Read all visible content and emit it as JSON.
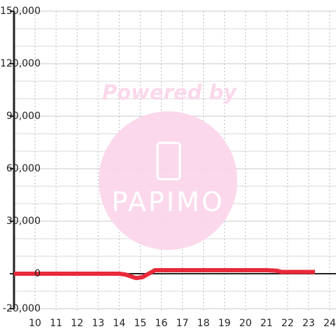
{
  "chart_data": {
    "type": "line",
    "watermark": {
      "line1": "Powered by",
      "line2": "PAPIMO"
    },
    "x": [
      9,
      10,
      11,
      12,
      13,
      14,
      14.3,
      14.8,
      15.1,
      15.4,
      15.7,
      16,
      17,
      18,
      19,
      20,
      21,
      21.5,
      21.7,
      22,
      23,
      23.3
    ],
    "series": [
      {
        "color": "#e8293a",
        "values": [
          0,
          0,
          0,
          0,
          0,
          0,
          -500,
          -2500,
          -2000,
          0,
          2000,
          2000,
          2000,
          2000,
          2000,
          2000,
          2000,
          1700,
          1000,
          1000,
          1000,
          1000
        ]
      }
    ],
    "xlim": [
      9,
      24.3
    ],
    "xticks": [
      10,
      11,
      12,
      13,
      14,
      15,
      16,
      17,
      18,
      19,
      20,
      21,
      22,
      23,
      24
    ],
    "ylim": [
      -20000,
      150000
    ],
    "yticks": [
      {
        "value": -20000,
        "label": "-20,000"
      },
      0,
      {
        "value": 30000,
        "label": "30,000"
      },
      {
        "value": 60000,
        "label": "60,000"
      },
      {
        "value": 90000,
        "label": "90,000"
      },
      {
        "value": 120000,
        "label": "120,000"
      },
      {
        "value": 150000,
        "label": "150,000"
      }
    ],
    "grid": true
  }
}
